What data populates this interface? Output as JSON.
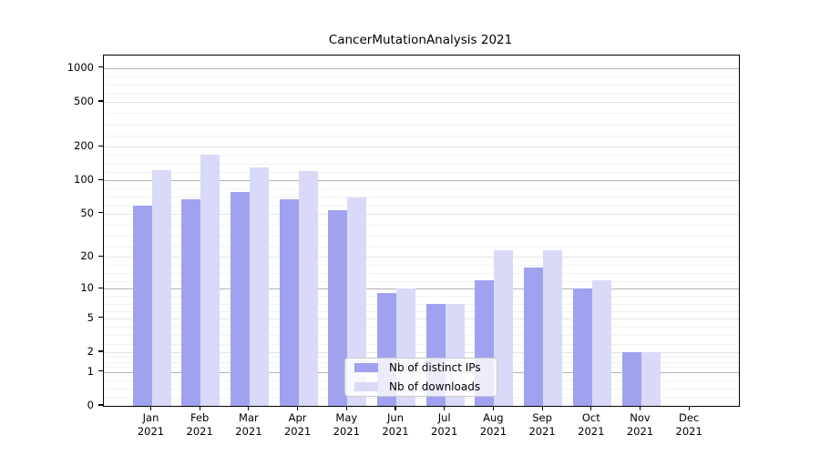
{
  "chart_data": {
    "type": "bar",
    "title": "CancerMutationAnalysis 2021",
    "categories": [
      "Jan",
      "Feb",
      "Mar",
      "Apr",
      "May",
      "Jun",
      "Jul",
      "Aug",
      "Sep",
      "Oct",
      "Nov",
      "Dec"
    ],
    "x_tick_second_line": "2021",
    "series": [
      {
        "name": "Nb of distinct IPs",
        "color": "#a0a2f0",
        "values": [
          59,
          68,
          78,
          68,
          54,
          9,
          7,
          12,
          16,
          10,
          2,
          0
        ]
      },
      {
        "name": "Nb of downloads",
        "color": "#d9daf8",
        "values": [
          124,
          168,
          130,
          122,
          70,
          10,
          7,
          23,
          23,
          12,
          2,
          0
        ]
      }
    ],
    "y_axis": {
      "scale": "log1p",
      "ticks": [
        0,
        1,
        2,
        5,
        10,
        20,
        50,
        100,
        200,
        500,
        1000
      ],
      "decade_ticks": [
        1,
        10,
        100,
        1000
      ]
    },
    "legend": {
      "position": "lower-center"
    },
    "grid": true,
    "colors": {
      "grid_decade": "rgba(90,90,90,0.45)",
      "grid_labeled": "rgba(120,120,120,0.20)",
      "grid_minor": "rgba(130,130,130,0.10)",
      "axis": "#000000",
      "background": "#ffffff"
    }
  }
}
